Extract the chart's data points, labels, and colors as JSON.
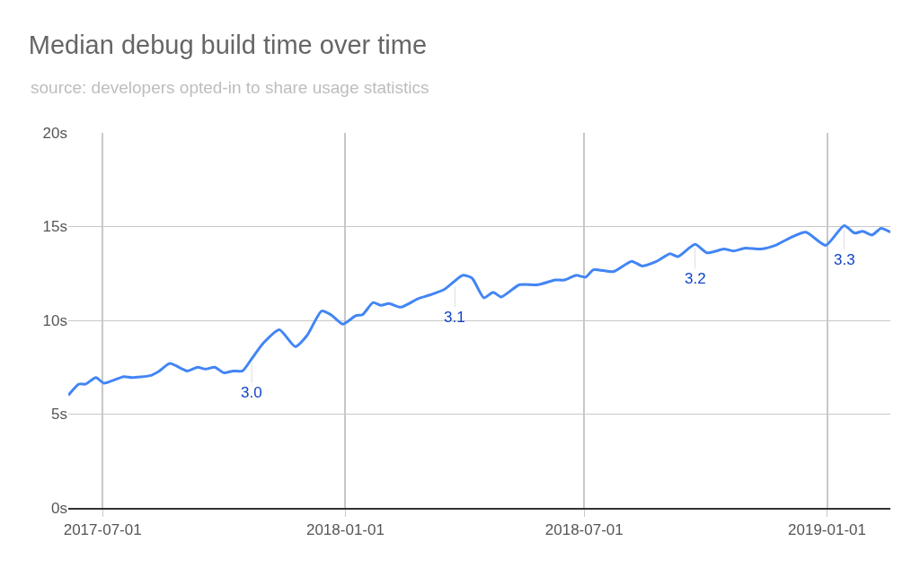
{
  "chart_data": {
    "type": "line",
    "title": "Median debug build time over time",
    "subtitle": "source: developers opted-in to share usage statistics",
    "x": [
      "2017-06-05",
      "2017-06-13",
      "2017-06-18",
      "2017-06-26",
      "2017-07-02",
      "2017-07-17",
      "2017-07-23",
      "2017-08-06",
      "2017-08-13",
      "2017-08-21",
      "2017-09-03",
      "2017-09-11",
      "2017-09-17",
      "2017-09-24",
      "2017-10-01",
      "2017-10-08",
      "2017-10-15",
      "2017-10-22",
      "2017-10-31",
      "2017-11-12",
      "2017-11-24",
      "2017-12-03",
      "2017-12-14",
      "2017-12-21",
      "2017-12-30",
      "2018-01-09",
      "2018-01-14",
      "2018-01-22",
      "2018-01-28",
      "2018-02-03",
      "2018-02-12",
      "2018-02-25",
      "2018-03-06",
      "2018-03-17",
      "2018-03-31",
      "2018-04-07",
      "2018-04-16",
      "2018-04-23",
      "2018-04-29",
      "2018-05-13",
      "2018-05-27",
      "2018-06-09",
      "2018-06-16",
      "2018-06-25",
      "2018-07-02",
      "2018-07-08",
      "2018-07-23",
      "2018-08-06",
      "2018-08-14",
      "2018-08-25",
      "2018-09-04",
      "2018-09-10",
      "2018-09-23",
      "2018-10-02",
      "2018-10-15",
      "2018-10-22",
      "2018-10-31",
      "2018-11-12",
      "2018-11-23",
      "2018-12-04",
      "2018-12-16",
      "2018-12-31",
      "2019-01-14",
      "2019-01-22",
      "2019-01-28",
      "2019-02-04",
      "2019-02-11",
      "2019-02-18"
    ],
    "series": [
      {
        "color": "#4285f4",
        "values": [
          6.0,
          6.6,
          6.6,
          6.95,
          6.65,
          7.0,
          6.95,
          7.05,
          7.3,
          7.7,
          7.3,
          7.5,
          7.4,
          7.5,
          7.2,
          7.3,
          7.3,
          7.95,
          8.8,
          9.5,
          8.6,
          9.2,
          10.5,
          10.3,
          9.8,
          10.25,
          10.3,
          10.95,
          10.8,
          10.9,
          10.7,
          11.15,
          11.35,
          11.65,
          12.4,
          12.25,
          11.2,
          11.5,
          11.25,
          11.9,
          11.9,
          12.15,
          12.15,
          12.4,
          12.3,
          12.7,
          12.6,
          13.15,
          12.9,
          13.15,
          13.55,
          13.4,
          14.05,
          13.6,
          13.8,
          13.7,
          13.85,
          13.8,
          14.0,
          14.4,
          14.7,
          14.0,
          15.05,
          14.65,
          14.75,
          14.55,
          14.9,
          14.7
        ]
      }
    ],
    "xlim": [
      "2017-06-05",
      "2019-02-18"
    ],
    "xticks": [
      {
        "value": "2017-07-01",
        "label": "2017-07-01"
      },
      {
        "value": "2018-01-01",
        "label": "2018-01-01"
      },
      {
        "value": "2018-07-01",
        "label": "2018-07-01"
      },
      {
        "value": "2019-01-01",
        "label": "2019-01-01"
      }
    ],
    "ylim": [
      0,
      20
    ],
    "yticks": [
      {
        "value": 0,
        "label": "0s"
      },
      {
        "value": 5,
        "label": "5s"
      },
      {
        "value": 10,
        "label": "10s"
      },
      {
        "value": 15,
        "label": "15s"
      },
      {
        "value": 20,
        "label": "20s"
      }
    ],
    "grid": true,
    "legend": false,
    "marker": "none",
    "line_style": "solid",
    "annotations": [
      {
        "text": "3.0",
        "x": "2017-10-22",
        "y": 7.95
      },
      {
        "text": "3.1",
        "x": "2018-03-25",
        "y": 12.0
      },
      {
        "text": "3.2",
        "x": "2018-09-23",
        "y": 14.05
      },
      {
        "text": "3.3",
        "x": "2019-01-14",
        "y": 15.05
      }
    ]
  }
}
